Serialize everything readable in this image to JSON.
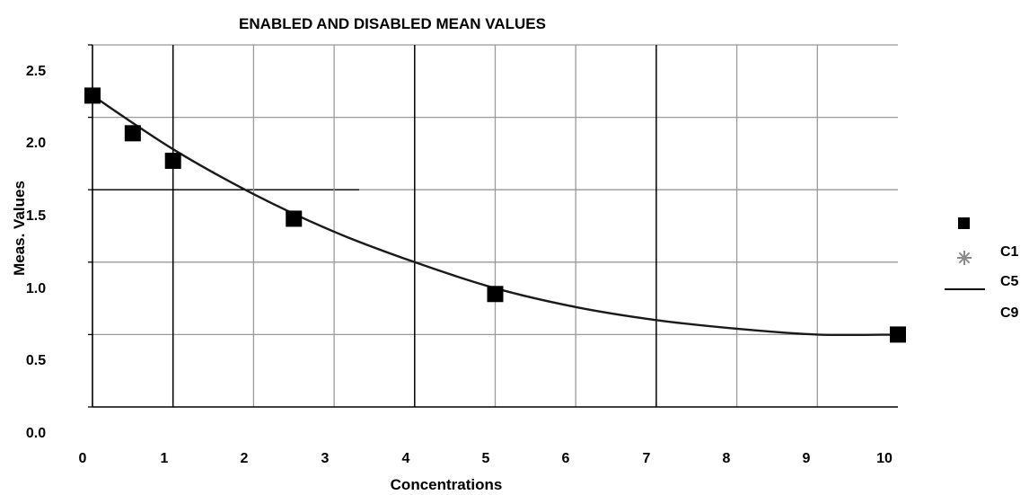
{
  "chart_data": {
    "type": "scatter",
    "title": "ENABLED AND DISABLED MEAN VALUES",
    "xlabel": "Concentrations",
    "ylabel": "Meas. Values",
    "xlim": [
      0,
      10
    ],
    "ylim": [
      0.0,
      2.5
    ],
    "x_ticks": [
      "0",
      "1",
      "2",
      "3",
      "4",
      "5",
      "6",
      "7",
      "8",
      "9",
      "10"
    ],
    "y_ticks": [
      "0.0",
      "0.5",
      "1.0",
      "1.5",
      "2.0",
      "2.5"
    ],
    "grid": true,
    "legend_position": "right",
    "series": [
      {
        "marker": "square",
        "x": [
          0,
          0.5,
          1,
          2.5,
          5,
          10
        ],
        "y": [
          2.15,
          1.89,
          1.7,
          1.3,
          0.78,
          0.5
        ]
      },
      {
        "name": "C1",
        "marker": "asterisk",
        "x": [],
        "y": []
      },
      {
        "name": "C5",
        "marker": "line",
        "x": [
          0,
          1,
          2,
          3,
          4,
          5,
          6,
          7,
          8,
          9,
          10
        ],
        "y": [
          2.15,
          1.78,
          1.47,
          1.21,
          1.0,
          0.82,
          0.69,
          0.6,
          0.54,
          0.5,
          0.5
        ]
      },
      {
        "name": "C9",
        "marker": "none",
        "x": [],
        "y": []
      }
    ],
    "colors": {
      "marker": "#000000",
      "curve": "#1a1a1a",
      "grid": "#9a9a9a",
      "gridDark": "#000000",
      "asterisk": "#8c8c8c"
    }
  }
}
